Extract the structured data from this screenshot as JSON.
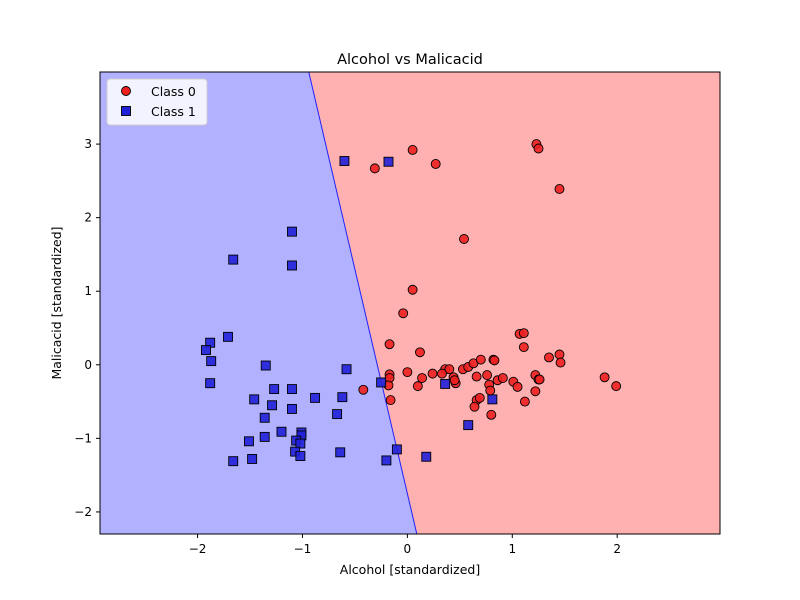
{
  "chart_data": {
    "type": "scatter",
    "title": "Alcohol vs Malicacid",
    "xlabel": "Alcohol [standardized]",
    "ylabel": "Malicacid [standardized]",
    "xlim": [
      -2.93,
      2.98
    ],
    "ylim": [
      -2.3,
      3.98
    ],
    "xticks": [
      -2,
      -1,
      0,
      1,
      2
    ],
    "yticks": [
      -2,
      -1,
      0,
      1,
      2,
      3
    ],
    "legend_position": "top-left",
    "regions": [
      {
        "name": "class-0-region",
        "color": "#ffb1b1"
      },
      {
        "name": "class-1-region",
        "color": "#b1b1ff"
      }
    ],
    "boundary": [
      [
        -0.94,
        3.98
      ],
      [
        0.09,
        -2.3
      ]
    ],
    "series": [
      {
        "name": "Class 0",
        "marker": "circle",
        "color": "#ee2020",
        "points": [
          [
            0.05,
            2.92
          ],
          [
            -0.31,
            2.67
          ],
          [
            0.27,
            2.73
          ],
          [
            1.23,
            3.0
          ],
          [
            1.25,
            2.94
          ],
          [
            1.45,
            2.39
          ],
          [
            0.54,
            1.71
          ],
          [
            0.05,
            1.02
          ],
          [
            -0.04,
            0.7
          ],
          [
            0.12,
            0.17
          ],
          [
            -0.17,
            0.28
          ],
          [
            1.07,
            0.42
          ],
          [
            1.11,
            0.43
          ],
          [
            1.11,
            0.24
          ],
          [
            1.35,
            0.1
          ],
          [
            1.45,
            0.14
          ],
          [
            1.46,
            0.03
          ],
          [
            1.88,
            -0.17
          ],
          [
            1.99,
            -0.29
          ],
          [
            0.36,
            -0.06
          ],
          [
            0.4,
            -0.06
          ],
          [
            0.53,
            -0.06
          ],
          [
            0.58,
            -0.03
          ],
          [
            0.63,
            0.02
          ],
          [
            0.7,
            0.07
          ],
          [
            0.82,
            0.07
          ],
          [
            0.83,
            0.06
          ],
          [
            -0.17,
            -0.13
          ],
          [
            -0.17,
            -0.18
          ],
          [
            -0.18,
            -0.28
          ],
          [
            -0.16,
            -0.48
          ],
          [
            0.0,
            -0.1
          ],
          [
            0.1,
            -0.29
          ],
          [
            0.14,
            -0.18
          ],
          [
            0.24,
            -0.12
          ],
          [
            0.33,
            -0.12
          ],
          [
            0.44,
            -0.17
          ],
          [
            0.46,
            -0.25
          ],
          [
            0.45,
            -0.21
          ],
          [
            0.66,
            -0.16
          ],
          [
            0.66,
            -0.48
          ],
          [
            0.64,
            -0.57
          ],
          [
            0.69,
            -0.45
          ],
          [
            0.76,
            -0.14
          ],
          [
            0.78,
            -0.27
          ],
          [
            0.79,
            -0.35
          ],
          [
            0.8,
            -0.68
          ],
          [
            0.86,
            -0.21
          ],
          [
            0.91,
            -0.18
          ],
          [
            1.01,
            -0.23
          ],
          [
            1.05,
            -0.3
          ],
          [
            1.12,
            -0.5
          ],
          [
            1.22,
            -0.36
          ],
          [
            1.22,
            -0.14
          ],
          [
            1.25,
            -0.2
          ],
          [
            1.26,
            -0.2
          ],
          [
            -0.42,
            -0.34
          ]
        ]
      },
      {
        "name": "Class 1",
        "marker": "square",
        "color": "#2020d8",
        "points": [
          [
            -0.6,
            2.77
          ],
          [
            -0.18,
            2.76
          ],
          [
            -1.1,
            1.81
          ],
          [
            -1.1,
            1.35
          ],
          [
            -1.66,
            1.43
          ],
          [
            -1.71,
            0.38
          ],
          [
            -1.88,
            0.3
          ],
          [
            -1.92,
            0.2
          ],
          [
            -1.87,
            0.05
          ],
          [
            -1.88,
            -0.25
          ],
          [
            -1.35,
            -0.01
          ],
          [
            -0.58,
            -0.06
          ],
          [
            -1.27,
            -0.33
          ],
          [
            -1.1,
            -0.33
          ],
          [
            -1.46,
            -0.47
          ],
          [
            -1.29,
            -0.55
          ],
          [
            -1.1,
            -0.6
          ],
          [
            -0.88,
            -0.45
          ],
          [
            -0.62,
            -0.44
          ],
          [
            -0.25,
            -0.24
          ],
          [
            -1.36,
            -0.72
          ],
          [
            -0.67,
            -0.67
          ],
          [
            -1.2,
            -0.91
          ],
          [
            -1.01,
            -0.92
          ],
          [
            -1.01,
            -0.96
          ],
          [
            -1.36,
            -0.98
          ],
          [
            -1.51,
            -1.04
          ],
          [
            -1.06,
            -1.03
          ],
          [
            -1.02,
            -1.07
          ],
          [
            -1.07,
            -1.18
          ],
          [
            -1.02,
            -1.24
          ],
          [
            -1.48,
            -1.28
          ],
          [
            -1.66,
            -1.31
          ],
          [
            -0.64,
            -1.19
          ],
          [
            -0.2,
            -1.3
          ],
          [
            -0.1,
            -1.15
          ],
          [
            0.18,
            -1.25
          ],
          [
            0.36,
            -0.26
          ],
          [
            0.58,
            -0.82
          ],
          [
            0.81,
            -0.47
          ]
        ]
      }
    ]
  }
}
